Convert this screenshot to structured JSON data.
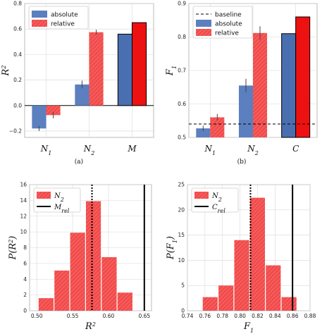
{
  "colors": {
    "absolute": "#5b7fbf",
    "relative": "#f24b4b",
    "dark_blue": "#4a6fb0",
    "dark_red": "#ee1111",
    "hist": "#f24b4b",
    "error": "#444444",
    "frame": "#bbbbbb"
  },
  "chart_data": [
    {
      "id": "a",
      "type": "bar",
      "caption": "(a)",
      "ylabel": "R",
      "ylabel_sup": "2",
      "ylim": [
        -0.25,
        0.8
      ],
      "yticks": [
        "−0.2",
        "0.0",
        "0.2",
        "0.4",
        "0.6",
        "0.8"
      ],
      "ytick_values": [
        -0.2,
        0.0,
        0.2,
        0.4,
        0.6,
        0.8
      ],
      "categories": [
        {
          "main": "N",
          "sub": "1"
        },
        {
          "main": "N",
          "sub": "2"
        },
        {
          "main": "M",
          "sub": ""
        }
      ],
      "legend": [
        "absolute",
        "relative"
      ],
      "series": [
        {
          "name": "absolute",
          "values": [
            -0.18,
            0.165,
            0.56
          ],
          "errors": [
            0.02,
            0.03,
            0.0
          ]
        },
        {
          "name": "relative",
          "values": [
            -0.075,
            0.575,
            0.65
          ],
          "errors": [
            0.025,
            0.02,
            0.0
          ]
        }
      ]
    },
    {
      "id": "b",
      "type": "bar",
      "caption": "(b)",
      "ylabel": "F",
      "ylabel_sub": "1",
      "ylim": [
        0.5,
        0.9
      ],
      "yticks": [
        "0.5",
        "0.6",
        "0.7",
        "0.8",
        "0.9"
      ],
      "ytick_values": [
        0.5,
        0.6,
        0.7,
        0.8,
        0.9
      ],
      "categories": [
        {
          "main": "N",
          "sub": "1"
        },
        {
          "main": "N",
          "sub": "2"
        },
        {
          "main": "C",
          "sub": ""
        }
      ],
      "legend": [
        "baseline",
        "absolute",
        "relative"
      ],
      "baseline": 0.54,
      "series": [
        {
          "name": "absolute",
          "values": [
            0.527,
            0.655,
            0.81
          ],
          "errors": [
            0.008,
            0.02,
            0.0
          ]
        },
        {
          "name": "relative",
          "values": [
            0.56,
            0.812,
            0.86
          ],
          "errors": [
            0.01,
            0.02,
            0.0
          ]
        }
      ]
    },
    {
      "id": "c",
      "type": "histogram",
      "xlabel": "R",
      "xlabel_sup": "2",
      "ylabel": "P(R",
      "ylabel_sup": "2",
      "ylabel_close": ")",
      "xlim": [
        0.49,
        0.66
      ],
      "ylim": [
        0,
        16
      ],
      "xticks": [
        "0.50",
        "0.55",
        "0.60",
        "0.65"
      ],
      "xtick_values": [
        0.5,
        0.55,
        0.6,
        0.65
      ],
      "yticks": [
        "0",
        "2",
        "4",
        "6",
        "8",
        "10",
        "12",
        "14",
        "16"
      ],
      "ytick_values": [
        0,
        2,
        4,
        6,
        8,
        10,
        12,
        14,
        16
      ],
      "legend": [
        {
          "main": "N",
          "sub": "2"
        },
        {
          "main": "M",
          "sub": "rel"
        }
      ],
      "bin_edges": [
        0.502,
        0.524,
        0.546,
        0.568,
        0.59,
        0.612,
        0.634
      ],
      "counts": [
        1.6,
        5.1,
        9.9,
        13.9,
        6.8,
        2.3
      ],
      "mean_line": 0.577,
      "reference_line": 0.65
    },
    {
      "id": "d",
      "type": "histogram",
      "xlabel": "F",
      "xlabel_sub": "1",
      "ylabel": "P(F",
      "ylabel_sub": "1",
      "ylabel_close": ")",
      "xlim": [
        0.74,
        0.88
      ],
      "ylim": [
        0,
        25
      ],
      "xticks": [
        "0.74",
        "0.76",
        "0.78",
        "0.80",
        "0.82",
        "0.84",
        "0.86",
        "0.88"
      ],
      "xtick_values": [
        0.74,
        0.76,
        0.78,
        0.8,
        0.82,
        0.84,
        0.86,
        0.88
      ],
      "yticks": [
        "0",
        "5",
        "10",
        "15",
        "20",
        "25"
      ],
      "ytick_values": [
        0,
        5,
        10,
        15,
        20,
        25
      ],
      "legend": [
        {
          "main": "N",
          "sub": "2"
        },
        {
          "main": "C",
          "sub": "rel"
        }
      ],
      "bin_edges": [
        0.757,
        0.775,
        0.793,
        0.811,
        0.829,
        0.847,
        0.865
      ],
      "counts": [
        2.7,
        5.0,
        14.0,
        22.4,
        9.0,
        2.7
      ],
      "mean_line": 0.812,
      "reference_line": 0.86
    }
  ]
}
